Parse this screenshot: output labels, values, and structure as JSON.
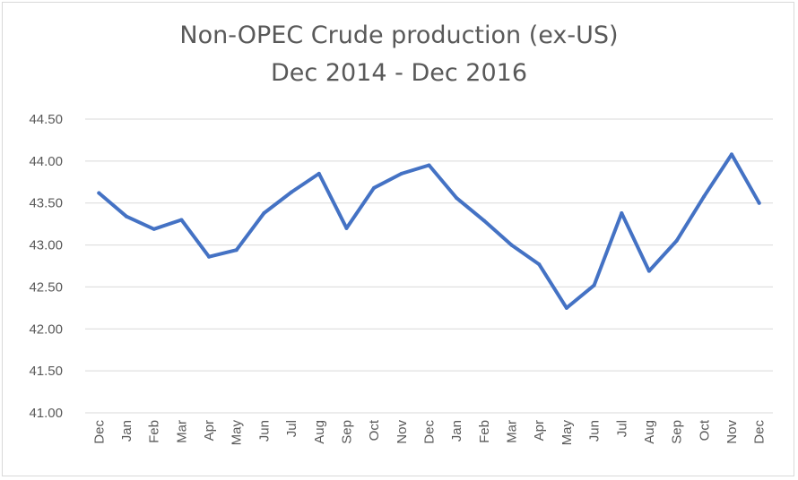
{
  "chart_data": {
    "type": "line",
    "title": "Non-OPEC Crude production (ex-US)",
    "subtitle": "Dec 2014 - Dec 2016",
    "xlabel": "",
    "ylabel": "",
    "categories": [
      "Dec",
      "Jan",
      "Feb",
      "Mar",
      "Apr",
      "May",
      "Jun",
      "Jul",
      "Aug",
      "Sep",
      "Oct",
      "Nov",
      "Dec",
      "Jan",
      "Feb",
      "Mar",
      "Apr",
      "May",
      "Jun",
      "Jul",
      "Aug",
      "Sep",
      "Oct",
      "Nov",
      "Dec"
    ],
    "series": [
      {
        "values": [
          43.62,
          43.34,
          43.19,
          43.3,
          42.86,
          42.94,
          43.38,
          43.63,
          43.85,
          43.2,
          43.68,
          43.85,
          43.95,
          43.56,
          43.29,
          43.0,
          42.77,
          42.25,
          42.52,
          43.38,
          42.69,
          43.05,
          43.58,
          44.08,
          43.5
        ],
        "color": "#4472C4"
      }
    ],
    "ylim": [
      41.0,
      44.5
    ],
    "yticks": [
      "41.00",
      "41.50",
      "42.00",
      "42.50",
      "43.00",
      "43.50",
      "44.00",
      "44.50"
    ],
    "grid": true,
    "legend": "none"
  }
}
